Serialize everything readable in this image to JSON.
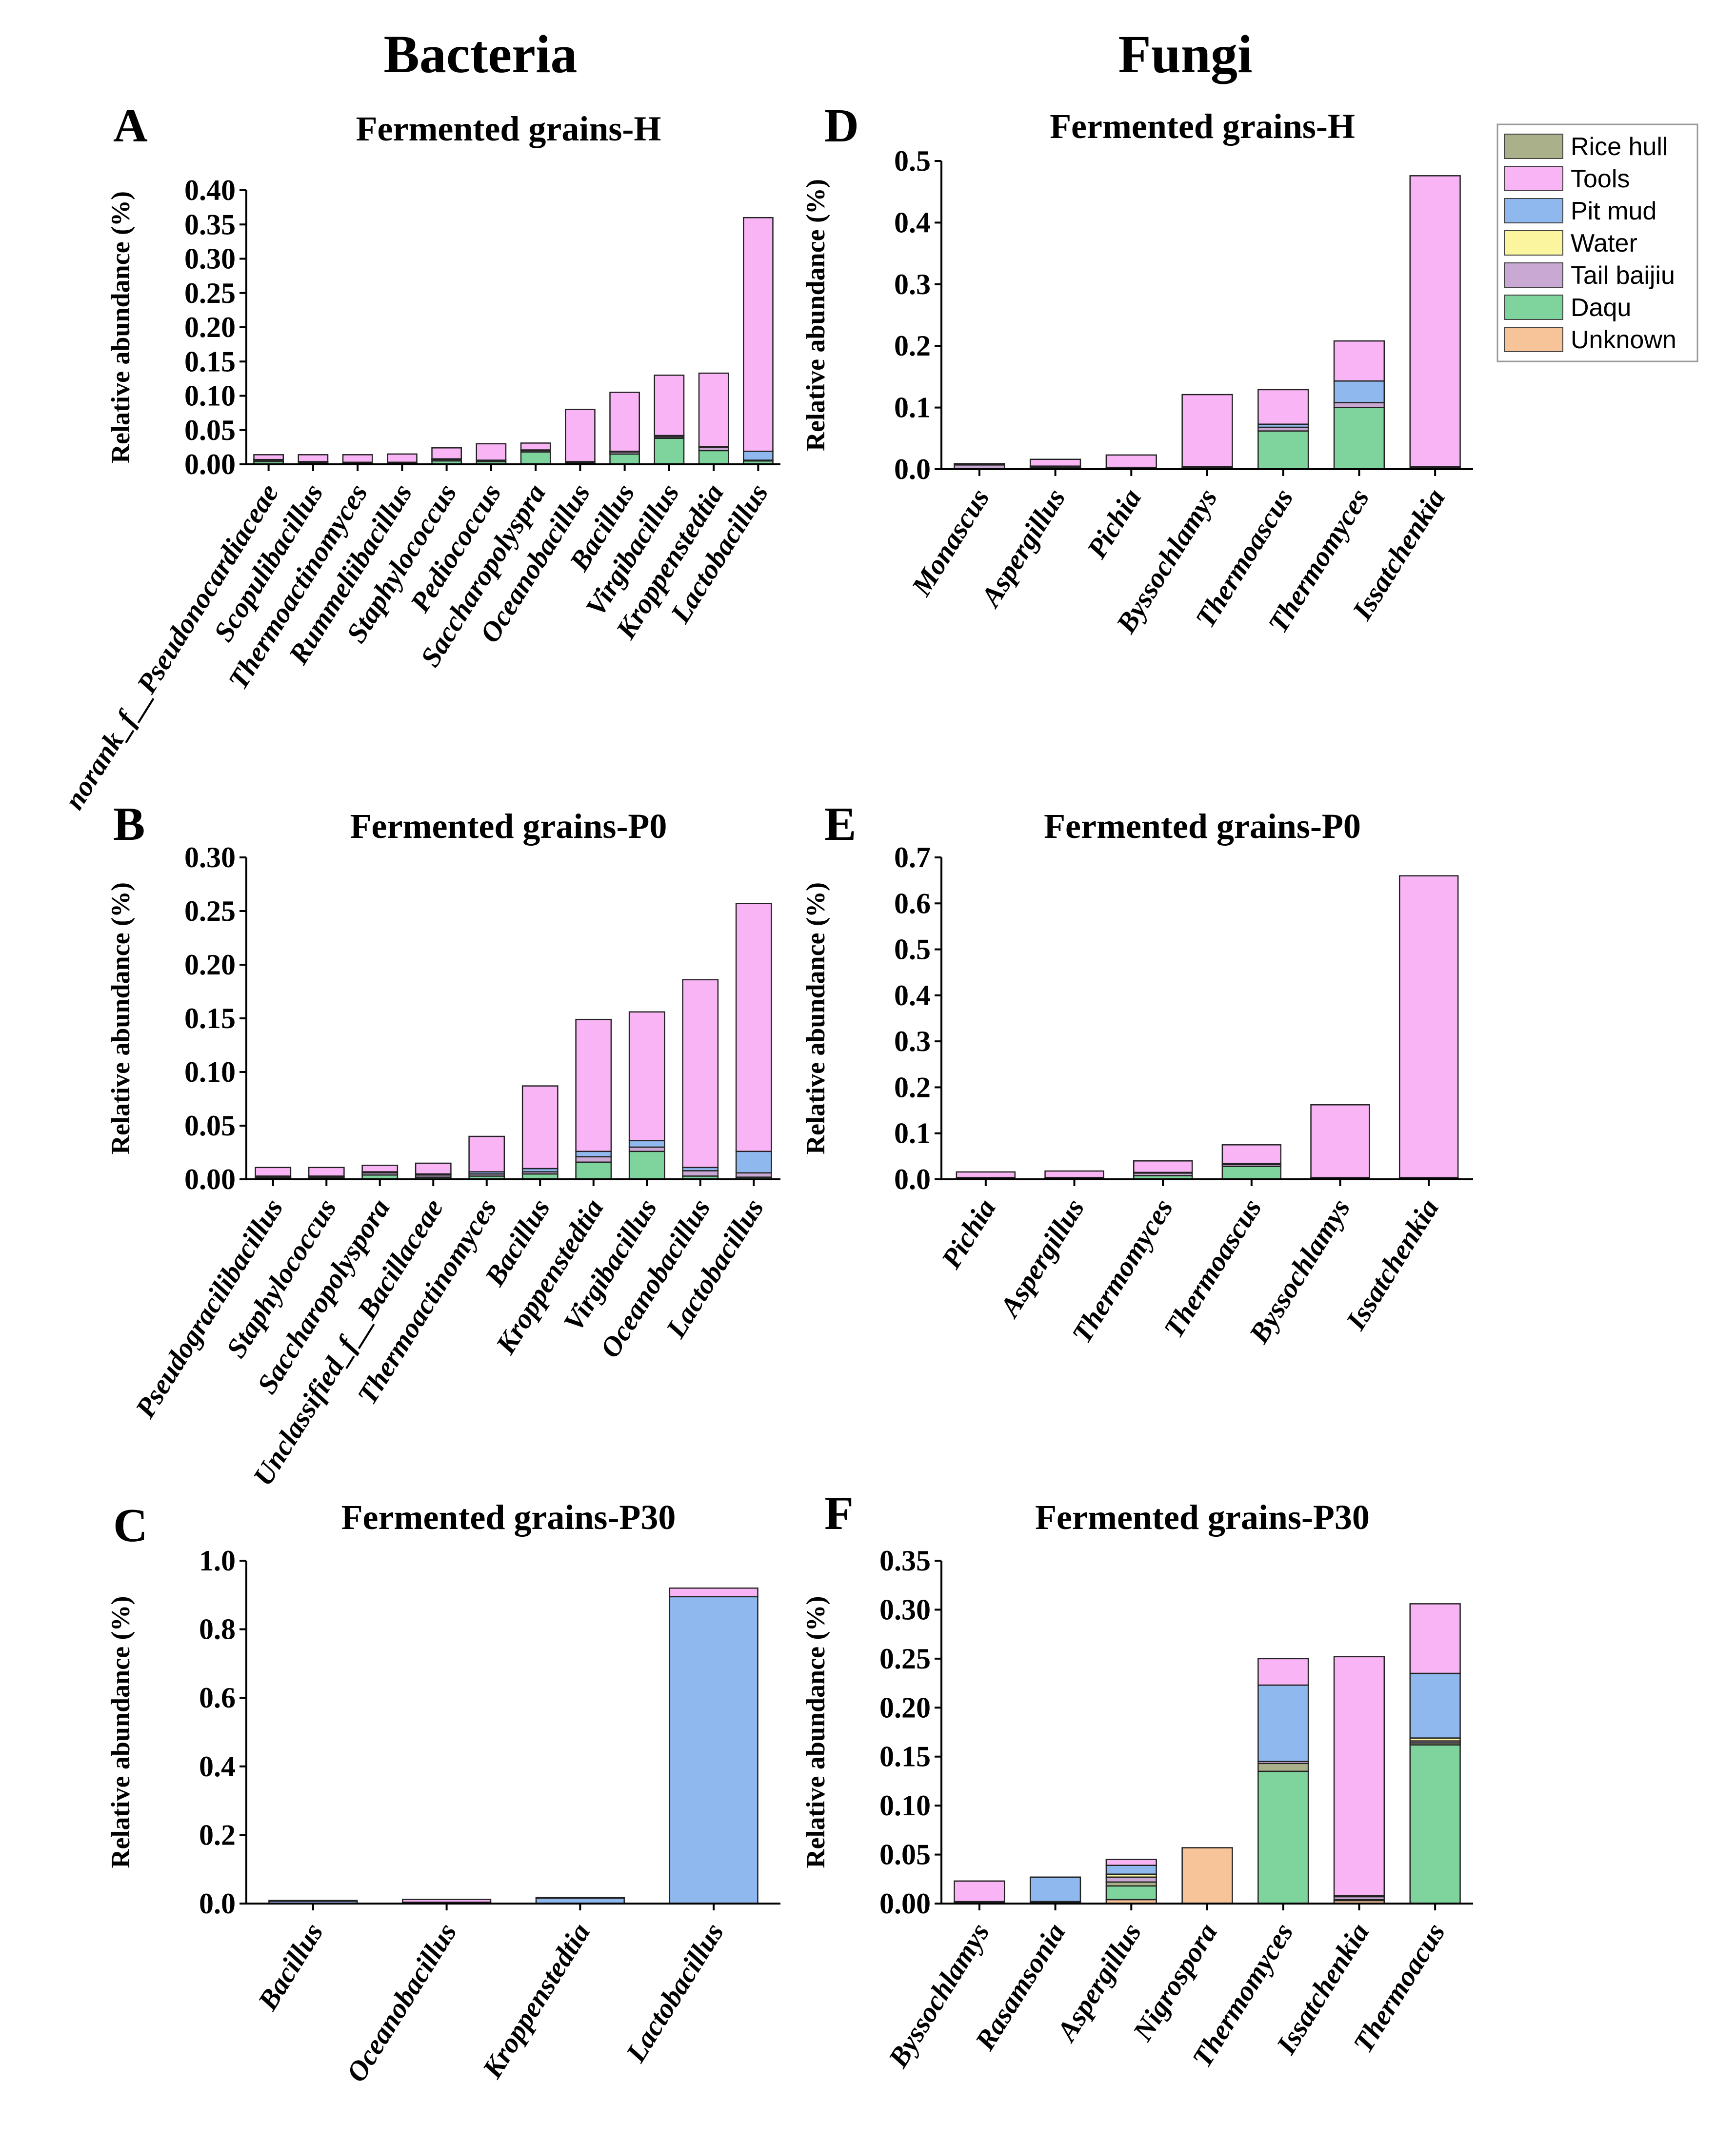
{
  "column_titles": {
    "left": "Bacteria",
    "right": "Fungi"
  },
  "legend": [
    {
      "name": "Rice hull",
      "color": "#a9b08a"
    },
    {
      "name": "Tools",
      "color": "#f8b4f4"
    },
    {
      "name": "Pit mud",
      "color": "#8fb8ee"
    },
    {
      "name": "Water",
      "color": "#fbf5a0"
    },
    {
      "name": "Tail baijiu",
      "color": "#c9a9d4"
    },
    {
      "name": "Daqu",
      "color": "#7ed49c"
    },
    {
      "name": "Unknown",
      "color": "#f7c49a"
    }
  ],
  "colors": {
    "outline": "#222222",
    "axis": "#000000"
  },
  "chart_data": [
    {
      "id": "A",
      "letter": "A",
      "type": "bar",
      "stacked": true,
      "title": "Fermented grains-H",
      "ylabel": "Relative abundance (%)",
      "ylim": [
        0,
        0.4
      ],
      "yticks": [
        "0.00",
        "0.05",
        "0.10",
        "0.15",
        "0.20",
        "0.25",
        "0.30",
        "0.35",
        "0.40"
      ],
      "categories": [
        "norank_f__Pseudonocardiaceae",
        "Scopulibacillus",
        "Thermoactinomyces",
        "Rummeliibacillus",
        "Staphylococcus",
        "Pediococcus",
        "Saccharopolyspra",
        "Oceanobacillus",
        "Bacillus",
        "Virgibacillus",
        "Kroppenstedtia",
        "Lactobacillus"
      ],
      "series": [
        {
          "name": "Daqu",
          "values": [
            0.004,
            0.002,
            0.001,
            0.001,
            0.005,
            0.004,
            0.018,
            0.002,
            0.015,
            0.038,
            0.02,
            0.005
          ]
        },
        {
          "name": "Tail baijiu",
          "values": [
            0.002,
            0.001,
            0.001,
            0.001,
            0.002,
            0.001,
            0.002,
            0.001,
            0.003,
            0.002,
            0.005,
            0.001
          ]
        },
        {
          "name": "Pit mud",
          "values": [
            0.001,
            0.001,
            0.001,
            0.001,
            0.001,
            0.001,
            0.001,
            0.001,
            0.001,
            0.002,
            0.001,
            0.013
          ]
        },
        {
          "name": "Tools",
          "values": [
            0.007,
            0.01,
            0.011,
            0.012,
            0.016,
            0.024,
            0.01,
            0.076,
            0.086,
            0.088,
            0.107,
            0.341
          ]
        }
      ]
    },
    {
      "id": "B",
      "letter": "B",
      "type": "bar",
      "stacked": true,
      "title": "Fermented grains-P0",
      "ylabel": "Relative abundance (%)",
      "ylim": [
        0,
        0.3
      ],
      "yticks": [
        "0.00",
        "0.05",
        "0.10",
        "0.15",
        "0.20",
        "0.25",
        "0.30"
      ],
      "categories": [
        "Pseudogracilibacillus",
        "Staphylococcus",
        "Saccharopolyspora",
        "Unclassified_f__Bacillaceae",
        "Thermoactinomyces",
        "Bacillus",
        "Kroppenstedtia",
        "Virgibacillus",
        "Oceanobacillus",
        "Lactobacillus"
      ],
      "series": [
        {
          "name": "Daqu",
          "values": [
            0.001,
            0.001,
            0.004,
            0.002,
            0.003,
            0.005,
            0.016,
            0.026,
            0.003,
            0.002
          ]
        },
        {
          "name": "Tail baijiu",
          "values": [
            0.001,
            0.001,
            0.002,
            0.002,
            0.002,
            0.002,
            0.005,
            0.004,
            0.005,
            0.004
          ]
        },
        {
          "name": "Pit mud",
          "values": [
            0.001,
            0.001,
            0.001,
            0.001,
            0.002,
            0.003,
            0.005,
            0.006,
            0.003,
            0.02
          ]
        },
        {
          "name": "Tools",
          "values": [
            0.008,
            0.008,
            0.006,
            0.01,
            0.033,
            0.077,
            0.123,
            0.12,
            0.175,
            0.231
          ]
        }
      ]
    },
    {
      "id": "C",
      "letter": "C",
      "type": "bar",
      "stacked": true,
      "title": "Fermented grains-P30",
      "ylabel": "Relative abundance (%)",
      "ylim": [
        0,
        1.0
      ],
      "yticks": [
        "0.0",
        "0.2",
        "0.4",
        "0.6",
        "0.8",
        "1.0"
      ],
      "categories": [
        "Bacillus",
        "Oceanobacillus",
        "Kroppenstedtia",
        "Lactobacillus"
      ],
      "series": [
        {
          "name": "Pit mud",
          "values": [
            0.007,
            0.004,
            0.017,
            0.895
          ]
        },
        {
          "name": "Tools",
          "values": [
            0.002,
            0.008,
            0.001,
            0.025
          ]
        }
      ]
    },
    {
      "id": "D",
      "letter": "D",
      "type": "bar",
      "stacked": true,
      "title": "Fermented grains-H",
      "ylabel": "Relative abundance (%)",
      "ylim": [
        0,
        0.5
      ],
      "yticks": [
        "0.0",
        "0.1",
        "0.2",
        "0.3",
        "0.4",
        "0.5"
      ],
      "categories": [
        "Monascus",
        "Aspergillus",
        "Pichia",
        "Byssochlamys",
        "Thermoascus",
        "Thermomyces",
        "Issatchenkia"
      ],
      "series": [
        {
          "name": "Daqu",
          "values": [
            0.001,
            0.002,
            0.001,
            0.002,
            0.062,
            0.1,
            0.002
          ]
        },
        {
          "name": "Tail baijiu",
          "values": [
            0.006,
            0.002,
            0.001,
            0.001,
            0.006,
            0.008,
            0.001
          ]
        },
        {
          "name": "Pit mud",
          "values": [
            0.001,
            0.001,
            0.001,
            0.001,
            0.005,
            0.035,
            0.001
          ]
        },
        {
          "name": "Tools",
          "values": [
            0.001,
            0.011,
            0.02,
            0.117,
            0.056,
            0.065,
            0.472
          ]
        }
      ]
    },
    {
      "id": "E",
      "letter": "E",
      "type": "bar",
      "stacked": true,
      "title": "Fermented grains-P0",
      "ylabel": "Relative abundance (%)",
      "ylim": [
        0,
        0.7
      ],
      "yticks": [
        "0.0",
        "0.1",
        "0.2",
        "0.3",
        "0.4",
        "0.5",
        "0.6",
        "0.7"
      ],
      "categories": [
        "Pichia",
        "Aspergillus",
        "Thermomyces",
        "Thermoascus",
        "Byssochlamys",
        "Issatchenkia"
      ],
      "series": [
        {
          "name": "Daqu",
          "values": [
            0.002,
            0.002,
            0.008,
            0.028,
            0.002,
            0.002
          ]
        },
        {
          "name": "Tail baijiu",
          "values": [
            0.001,
            0.001,
            0.006,
            0.004,
            0.001,
            0.001
          ]
        },
        {
          "name": "Pit mud",
          "values": [
            0.001,
            0.001,
            0.001,
            0.002,
            0.001,
            0.001
          ]
        },
        {
          "name": "Tools",
          "values": [
            0.012,
            0.014,
            0.025,
            0.041,
            0.158,
            0.656
          ]
        }
      ]
    },
    {
      "id": "F",
      "letter": "F",
      "type": "bar",
      "stacked": true,
      "title": "Fermented grains-P30",
      "ylabel": "Relative abundance (%)",
      "ylim": [
        0,
        0.35
      ],
      "yticks": [
        "0.00",
        "0.05",
        "0.10",
        "0.15",
        "0.20",
        "0.25",
        "0.30",
        "0.35"
      ],
      "categories": [
        "Byssochlamys",
        "Rasamsonia",
        "Aspergillus",
        "Nigrospora",
        "Thermomyces",
        "Issatchenkia",
        "Thermoacus"
      ],
      "series": [
        {
          "name": "Unknown",
          "values": [
            0.0,
            0.0,
            0.004,
            0.057,
            0.0,
            0.003,
            0.0
          ]
        },
        {
          "name": "Daqu",
          "values": [
            0.001,
            0.001,
            0.014,
            0.0,
            0.135,
            0.001,
            0.162
          ]
        },
        {
          "name": "Rice hull",
          "values": [
            0.0,
            0.0,
            0.004,
            0.0,
            0.008,
            0.0,
            0.002
          ]
        },
        {
          "name": "Tail baijiu",
          "values": [
            0.001,
            0.001,
            0.005,
            0.0,
            0.002,
            0.003,
            0.002
          ]
        },
        {
          "name": "Water",
          "values": [
            0.0,
            0.0,
            0.003,
            0.0,
            0.0,
            0.0,
            0.003
          ]
        },
        {
          "name": "Pit mud",
          "values": [
            0.0,
            0.025,
            0.009,
            0.0,
            0.078,
            0.001,
            0.066
          ]
        },
        {
          "name": "Tools",
          "values": [
            0.021,
            0.0,
            0.006,
            0.0,
            0.027,
            0.244,
            0.071
          ]
        }
      ]
    }
  ]
}
